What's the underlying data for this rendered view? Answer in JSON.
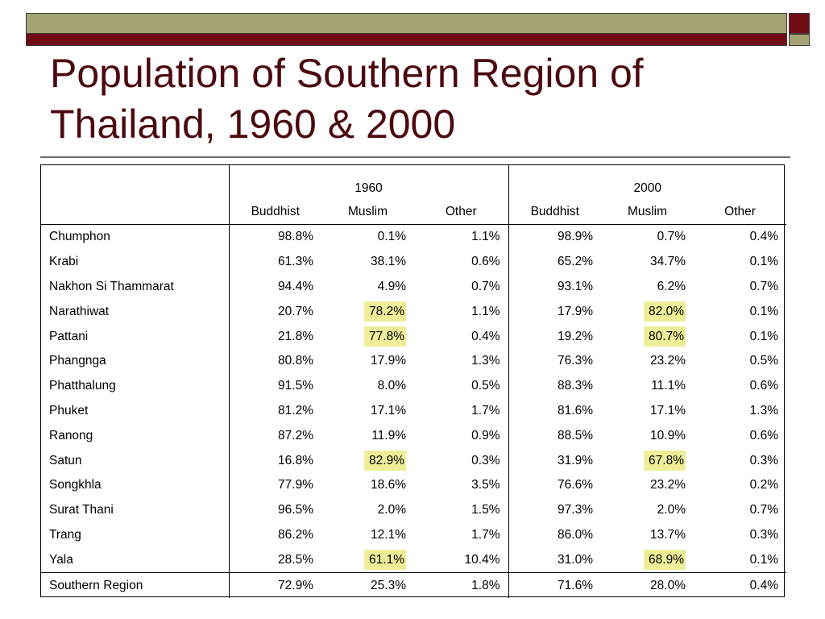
{
  "title": "Population of Southern Region of Thailand, 1960 & 2000",
  "colors": {
    "title": "#4b0a0f",
    "highlight": "#eeee99",
    "olive": "#a4a373",
    "maroon": "#6f0c14"
  },
  "table": {
    "years": [
      "1960",
      "2000"
    ],
    "categories": [
      "Buddhist",
      "Muslim",
      "Other",
      "Buddhist",
      "Muslim",
      "Other"
    ],
    "rows": [
      {
        "province": "Chumphon",
        "values": [
          "98.8%",
          "0.1%",
          "1.1%",
          "98.9%",
          "0.7%",
          "0.4%"
        ]
      },
      {
        "province": "Krabi",
        "values": [
          "61.3%",
          "38.1%",
          "0.6%",
          "65.2%",
          "34.7%",
          "0.1%"
        ]
      },
      {
        "province": "Nakhon Si Thammarat",
        "values": [
          "94.4%",
          "4.9%",
          "0.7%",
          "93.1%",
          "6.2%",
          "0.7%"
        ]
      },
      {
        "province": "Narathiwat",
        "values": [
          "20.7%",
          "78.2%",
          "1.1%",
          "17.9%",
          "82.0%",
          "0.1%"
        ]
      },
      {
        "province": "Pattani",
        "values": [
          "21.8%",
          "77.8%",
          "0.4%",
          "19.2%",
          "80.7%",
          "0.1%"
        ]
      },
      {
        "province": "Phangnga",
        "values": [
          "80.8%",
          "17.9%",
          "1.3%",
          "76.3%",
          "23.2%",
          "0.5%"
        ]
      },
      {
        "province": "Phatthalung",
        "values": [
          "91.5%",
          "8.0%",
          "0.5%",
          "88.3%",
          "11.1%",
          "0.6%"
        ]
      },
      {
        "province": "Phuket",
        "values": [
          "81.2%",
          "17.1%",
          "1.7%",
          "81.6%",
          "17.1%",
          "1.3%"
        ]
      },
      {
        "province": "Ranong",
        "values": [
          "87.2%",
          "11.9%",
          "0.9%",
          "88.5%",
          "10.9%",
          "0.6%"
        ]
      },
      {
        "province": "Satun",
        "values": [
          "16.8%",
          "82.9%",
          "0.3%",
          "31.9%",
          "67.8%",
          "0.3%"
        ]
      },
      {
        "province": "Songkhla",
        "values": [
          "77.9%",
          "18.6%",
          "3.5%",
          "76.6%",
          "23.2%",
          "0.2%"
        ]
      },
      {
        "province": "Surat Thani",
        "values": [
          "96.5%",
          "2.0%",
          "1.5%",
          "97.3%",
          "2.0%",
          "0.7%"
        ]
      },
      {
        "province": "Trang",
        "values": [
          "86.2%",
          "12.1%",
          "1.7%",
          "86.0%",
          "13.7%",
          "0.3%"
        ]
      },
      {
        "province": "Yala",
        "values": [
          "28.5%",
          "61.1%",
          "10.4%",
          "31.0%",
          "68.9%",
          "0.1%"
        ]
      }
    ],
    "total": {
      "province": "Southern Region",
      "values": [
        "72.9%",
        "25.3%",
        "1.8%",
        "71.6%",
        "28.0%",
        "0.4%"
      ]
    }
  }
}
